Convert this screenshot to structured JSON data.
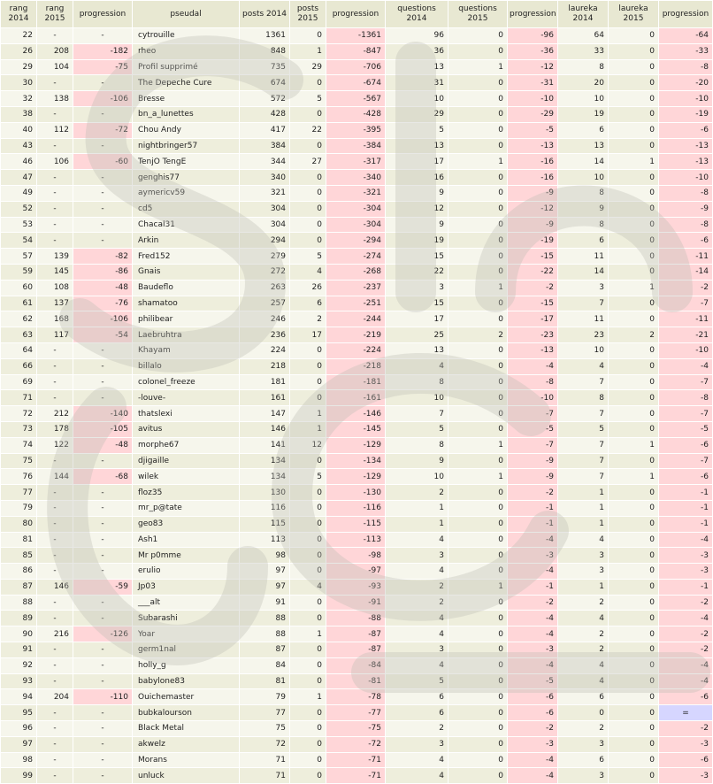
{
  "headers": [
    "rang 2014",
    "rang 2015",
    "progression",
    "pseudal",
    "posts 2014",
    "posts 2015",
    "progression",
    "questions 2014",
    "questions 2015",
    "progression",
    "laureka 2014",
    "laureka 2015",
    "progression"
  ],
  "rows": [
    [
      "22",
      "-",
      "-",
      "cytrouille",
      "1361",
      "0",
      "-1361",
      "96",
      "0",
      "-96",
      "64",
      "0",
      "-64"
    ],
    [
      "26",
      "208",
      "-182",
      "rheo",
      "848",
      "1",
      "-847",
      "36",
      "0",
      "-36",
      "33",
      "0",
      "-33"
    ],
    [
      "29",
      "104",
      "-75",
      "Profil supprimé",
      "735",
      "29",
      "-706",
      "13",
      "1",
      "-12",
      "8",
      "0",
      "-8"
    ],
    [
      "30",
      "-",
      "-",
      "The Depeche Cure",
      "674",
      "0",
      "-674",
      "31",
      "0",
      "-31",
      "20",
      "0",
      "-20"
    ],
    [
      "32",
      "138",
      "-106",
      "Bresse",
      "572",
      "5",
      "-567",
      "10",
      "0",
      "-10",
      "10",
      "0",
      "-10"
    ],
    [
      "38",
      "-",
      "-",
      "bn_a_lunettes",
      "428",
      "0",
      "-428",
      "29",
      "0",
      "-29",
      "19",
      "0",
      "-19"
    ],
    [
      "40",
      "112",
      "-72",
      "Chou Andy",
      "417",
      "22",
      "-395",
      "5",
      "0",
      "-5",
      "6",
      "0",
      "-6"
    ],
    [
      "43",
      "-",
      "-",
      "nightbringer57",
      "384",
      "0",
      "-384",
      "13",
      "0",
      "-13",
      "13",
      "0",
      "-13"
    ],
    [
      "46",
      "106",
      "-60",
      "TenjO TengE",
      "344",
      "27",
      "-317",
      "17",
      "1",
      "-16",
      "14",
      "1",
      "-13"
    ],
    [
      "47",
      "-",
      "-",
      "genghis77",
      "340",
      "0",
      "-340",
      "16",
      "0",
      "-16",
      "10",
      "0",
      "-10"
    ],
    [
      "49",
      "-",
      "-",
      "aymericv59",
      "321",
      "0",
      "-321",
      "9",
      "0",
      "-9",
      "8",
      "0",
      "-8"
    ],
    [
      "52",
      "-",
      "-",
      "cd5",
      "304",
      "0",
      "-304",
      "12",
      "0",
      "-12",
      "9",
      "0",
      "-9"
    ],
    [
      "53",
      "-",
      "-",
      "Chacal31",
      "304",
      "0",
      "-304",
      "9",
      "0",
      "-9",
      "8",
      "0",
      "-8"
    ],
    [
      "54",
      "-",
      "-",
      "Arkin",
      "294",
      "0",
      "-294",
      "19",
      "0",
      "-19",
      "6",
      "0",
      "-6"
    ],
    [
      "57",
      "139",
      "-82",
      "Fred152",
      "279",
      "5",
      "-274",
      "15",
      "0",
      "-15",
      "11",
      "0",
      "-11"
    ],
    [
      "59",
      "145",
      "-86",
      "Gnais",
      "272",
      "4",
      "-268",
      "22",
      "0",
      "-22",
      "14",
      "0",
      "-14"
    ],
    [
      "60",
      "108",
      "-48",
      "Baudeflo",
      "263",
      "26",
      "-237",
      "3",
      "1",
      "-2",
      "3",
      "1",
      "-2"
    ],
    [
      "61",
      "137",
      "-76",
      "shamatoo",
      "257",
      "6",
      "-251",
      "15",
      "0",
      "-15",
      "7",
      "0",
      "-7"
    ],
    [
      "62",
      "168",
      "-106",
      "philibear",
      "246",
      "2",
      "-244",
      "17",
      "0",
      "-17",
      "11",
      "0",
      "-11"
    ],
    [
      "63",
      "117",
      "-54",
      "Laebruhtra",
      "236",
      "17",
      "-219",
      "25",
      "2",
      "-23",
      "23",
      "2",
      "-21"
    ],
    [
      "64",
      "-",
      "-",
      "Khayam",
      "224",
      "0",
      "-224",
      "13",
      "0",
      "-13",
      "10",
      "0",
      "-10"
    ],
    [
      "66",
      "-",
      "-",
      "billalo",
      "218",
      "0",
      "-218",
      "4",
      "0",
      "-4",
      "4",
      "0",
      "-4"
    ],
    [
      "69",
      "-",
      "-",
      "colonel_freeze",
      "181",
      "0",
      "-181",
      "8",
      "0",
      "-8",
      "7",
      "0",
      "-7"
    ],
    [
      "71",
      "-",
      "-",
      "-louve-",
      "161",
      "0",
      "-161",
      "10",
      "0",
      "-10",
      "8",
      "0",
      "-8"
    ],
    [
      "72",
      "212",
      "-140",
      "thatslexi",
      "147",
      "1",
      "-146",
      "7",
      "0",
      "-7",
      "7",
      "0",
      "-7"
    ],
    [
      "73",
      "178",
      "-105",
      "avitus",
      "146",
      "1",
      "-145",
      "5",
      "0",
      "-5",
      "5",
      "0",
      "-5"
    ],
    [
      "74",
      "122",
      "-48",
      "morphe67",
      "141",
      "12",
      "-129",
      "8",
      "1",
      "-7",
      "7",
      "1",
      "-6"
    ],
    [
      "75",
      "-",
      "-",
      "djigaille",
      "134",
      "0",
      "-134",
      "9",
      "0",
      "-9",
      "7",
      "0",
      "-7"
    ],
    [
      "76",
      "144",
      "-68",
      "wilek",
      "134",
      "5",
      "-129",
      "10",
      "1",
      "-9",
      "7",
      "1",
      "-6"
    ],
    [
      "77",
      "-",
      "-",
      "floz35",
      "130",
      "0",
      "-130",
      "2",
      "0",
      "-2",
      "1",
      "0",
      "-1"
    ],
    [
      "79",
      "-",
      "-",
      "mr_p@tate",
      "116",
      "0",
      "-116",
      "1",
      "0",
      "-1",
      "1",
      "0",
      "-1"
    ],
    [
      "80",
      "-",
      "-",
      "geo83",
      "115",
      "0",
      "-115",
      "1",
      "0",
      "-1",
      "1",
      "0",
      "-1"
    ],
    [
      "81",
      "-",
      "-",
      "Ash1",
      "113",
      "0",
      "-113",
      "4",
      "0",
      "-4",
      "4",
      "0",
      "-4"
    ],
    [
      "85",
      "-",
      "-",
      "Mr p0mme",
      "98",
      "0",
      "-98",
      "3",
      "0",
      "-3",
      "3",
      "0",
      "-3"
    ],
    [
      "86",
      "-",
      "-",
      "erulio",
      "97",
      "0",
      "-97",
      "4",
      "0",
      "-4",
      "3",
      "0",
      "-3"
    ],
    [
      "87",
      "146",
      "-59",
      "Jp03",
      "97",
      "4",
      "-93",
      "2",
      "1",
      "-1",
      "1",
      "0",
      "-1"
    ],
    [
      "88",
      "-",
      "-",
      "___alt",
      "91",
      "0",
      "-91",
      "2",
      "0",
      "-2",
      "2",
      "0",
      "-2"
    ],
    [
      "89",
      "-",
      "-",
      "Subarashi",
      "88",
      "0",
      "-88",
      "4",
      "0",
      "-4",
      "4",
      "0",
      "-4"
    ],
    [
      "90",
      "216",
      "-126",
      "Yoar",
      "88",
      "1",
      "-87",
      "4",
      "0",
      "-4",
      "2",
      "0",
      "-2"
    ],
    [
      "91",
      "-",
      "-",
      "germ1nal",
      "87",
      "0",
      "-87",
      "3",
      "0",
      "-3",
      "2",
      "0",
      "-2"
    ],
    [
      "92",
      "-",
      "-",
      "holly_g",
      "84",
      "0",
      "-84",
      "4",
      "0",
      "-4",
      "4",
      "0",
      "-4"
    ],
    [
      "93",
      "-",
      "-",
      "babylone83",
      "81",
      "0",
      "-81",
      "5",
      "0",
      "-5",
      "4",
      "0",
      "-4"
    ],
    [
      "94",
      "204",
      "-110",
      "Ouichemaster",
      "79",
      "1",
      "-78",
      "6",
      "0",
      "-6",
      "6",
      "0",
      "-6"
    ],
    [
      "95",
      "-",
      "-",
      "bubkalourson",
      "77",
      "0",
      "-77",
      "6",
      "0",
      "-6",
      "0",
      "0",
      "="
    ],
    [
      "96",
      "-",
      "-",
      "Black Metal",
      "75",
      "0",
      "-75",
      "2",
      "0",
      "-2",
      "2",
      "0",
      "-2"
    ],
    [
      "97",
      "-",
      "-",
      "akwelz",
      "72",
      "0",
      "-72",
      "3",
      "0",
      "-3",
      "3",
      "0",
      "-3"
    ],
    [
      "98",
      "-",
      "-",
      "Morans",
      "71",
      "0",
      "-71",
      "4",
      "0",
      "-4",
      "6",
      "0",
      "-6"
    ],
    [
      "99",
      "-",
      "-",
      "unluck",
      "71",
      "0",
      "-71",
      "4",
      "0",
      "-4",
      "3",
      "0",
      "-3"
    ]
  ]
}
